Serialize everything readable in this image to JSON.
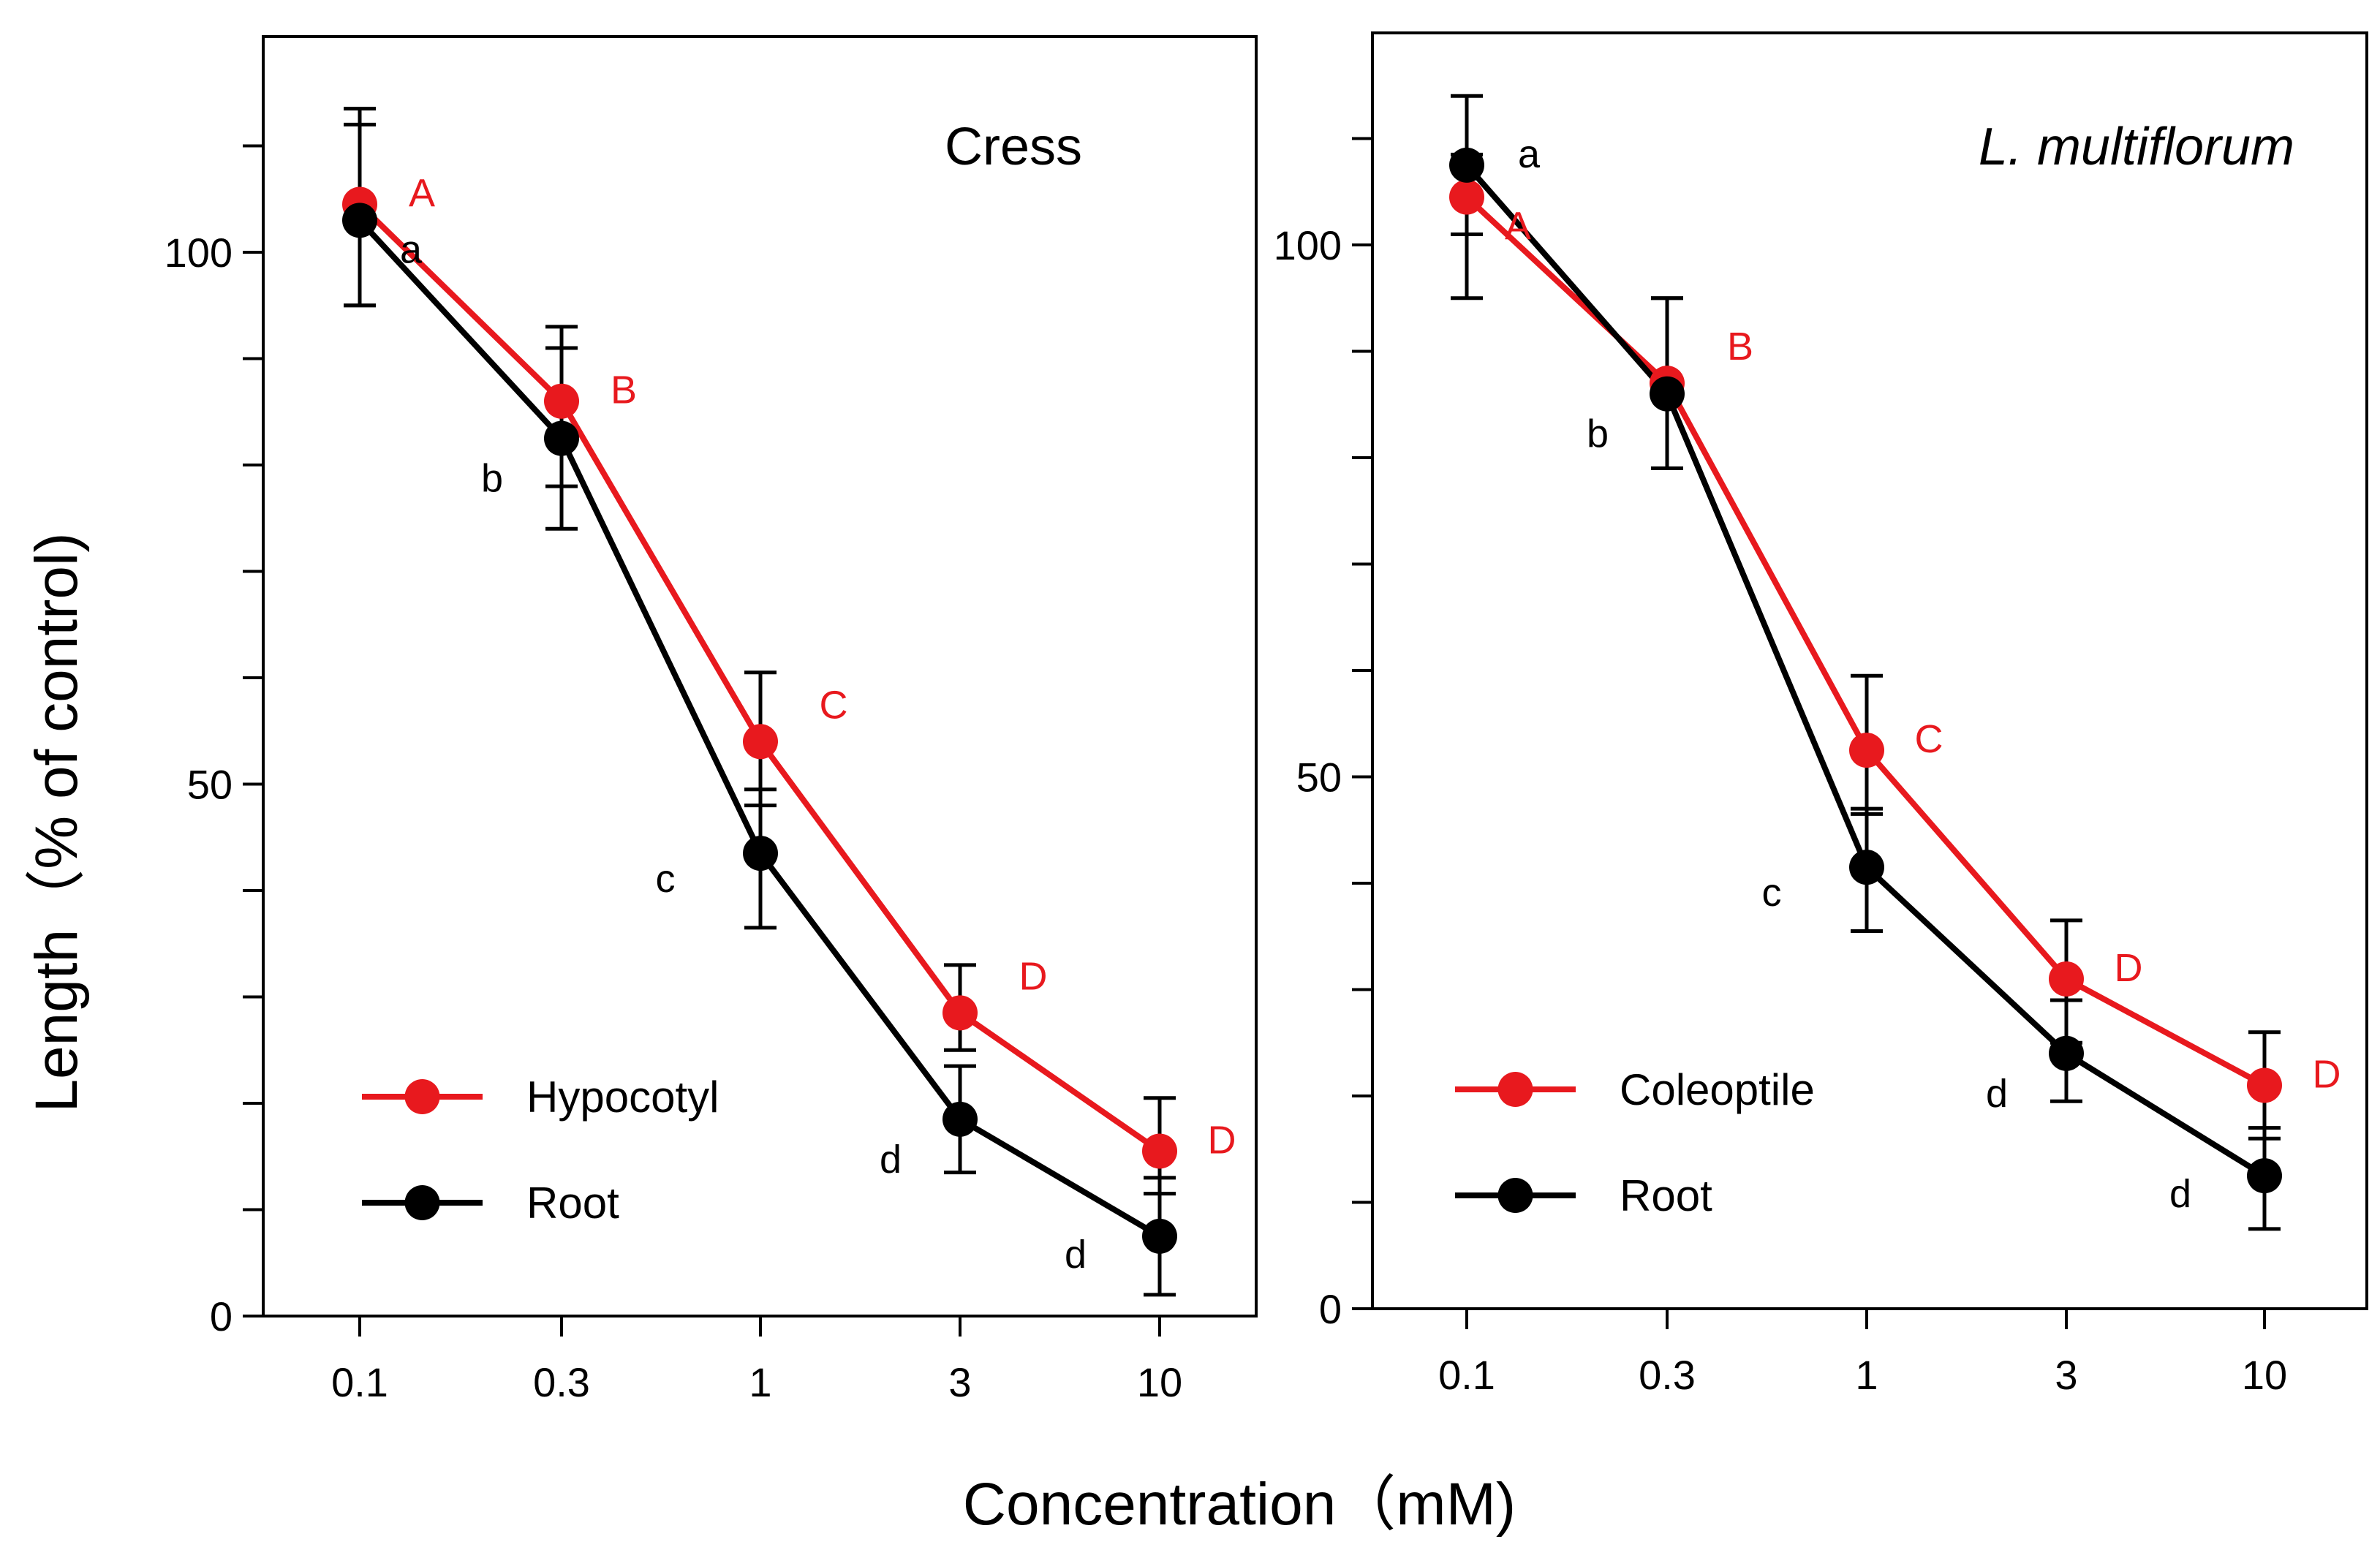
{
  "figure": {
    "ylabel": "Length（% of control)",
    "xlabel": "Concentration（mM)"
  },
  "chart_data": [
    {
      "type": "line",
      "title": "Cress",
      "title_italic": false,
      "xscale": "log",
      "categories": [
        "0.1",
        "0.3",
        "1",
        "3",
        "10"
      ],
      "x": [
        0.1,
        0.3,
        1,
        3,
        10
      ],
      "ylim": [
        0,
        120
      ],
      "yticks": [
        0,
        50,
        100
      ],
      "legend_position": "bottom-left",
      "series": [
        {
          "name": "Hypocotyl",
          "color": "#e8191e",
          "values": [
            104.5,
            86,
            54,
            28.5,
            15.5
          ],
          "err_low": [
            9.5,
            8,
            6,
            3.5,
            4
          ],
          "err_high": [
            7.5,
            7,
            6.5,
            4.5,
            5
          ],
          "letters": [
            "A",
            "B",
            "C",
            "D",
            "D"
          ],
          "letter_placement": [
            "right",
            "right",
            "upper-right",
            "upper-right",
            "right"
          ]
        },
        {
          "name": "Root",
          "color": "#000000",
          "values": [
            103,
            82.5,
            43.5,
            18.5,
            7.5
          ],
          "err_low": [
            8,
            8.5,
            7,
            5,
            5.5
          ],
          "err_high": [
            10.5,
            8.5,
            6,
            5,
            5.5
          ],
          "letters": [
            "a",
            "b",
            "c",
            "d",
            "d"
          ],
          "letter_placement": [
            "below-right",
            "left",
            "below-left",
            "left",
            "lower-left"
          ]
        }
      ]
    },
    {
      "type": "line",
      "title": "L. multiflorum",
      "title_italic": true,
      "xscale": "log",
      "categories": [
        "0.1",
        "0.3",
        "1",
        "3",
        "10"
      ],
      "x": [
        0.1,
        0.3,
        1,
        3,
        10
      ],
      "ylim": [
        0,
        120
      ],
      "yticks": [
        0,
        50,
        100
      ],
      "legend_position": "bottom-left",
      "series": [
        {
          "name": "Coleoptile",
          "color": "#e8191e",
          "values": [
            104.5,
            87,
            52.5,
            31,
            21
          ],
          "err_low": [
            9.5,
            8,
            6,
            6,
            5
          ],
          "err_high": [
            4,
            8,
            7,
            5.5,
            5
          ],
          "letters": [
            "A",
            "B",
            "C",
            "D",
            "D"
          ],
          "letter_placement": [
            "below-right",
            "upper-right",
            "right",
            "right",
            "right"
          ]
        },
        {
          "name": "Root",
          "color": "#000000",
          "values": [
            107.5,
            86,
            41.5,
            24,
            12.5
          ],
          "err_low": [
            6.5,
            7,
            6,
            4.5,
            5
          ],
          "err_high": [
            6.5,
            9,
            5.5,
            5,
            4.5
          ],
          "letters": [
            "a",
            "b",
            "c",
            "d",
            "d"
          ],
          "letter_placement": [
            "right",
            "left",
            "below-left",
            "left",
            "lower-left"
          ]
        }
      ]
    }
  ]
}
